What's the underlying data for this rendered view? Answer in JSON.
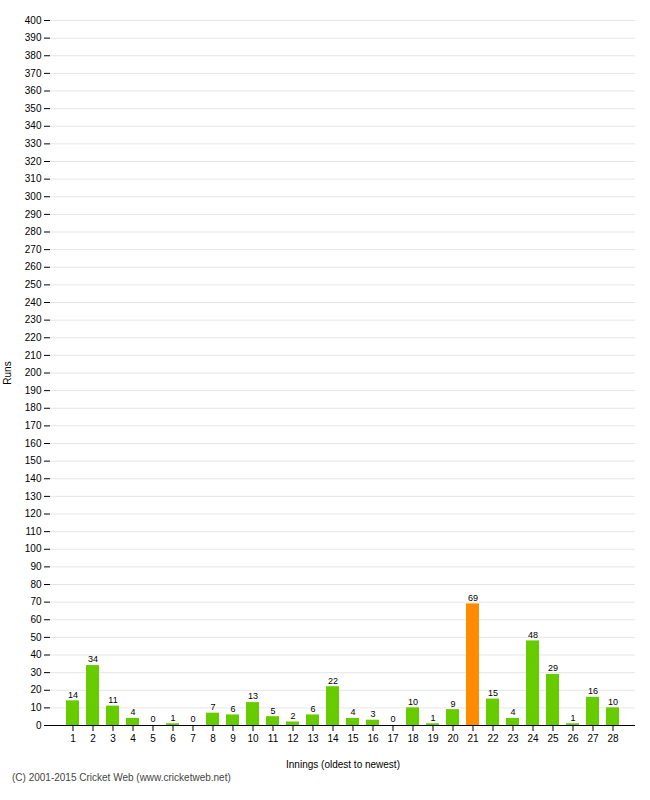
{
  "chart_data": {
    "type": "bar",
    "categories": [
      "1",
      "2",
      "3",
      "4",
      "5",
      "6",
      "7",
      "8",
      "9",
      "10",
      "11",
      "12",
      "13",
      "14",
      "15",
      "16",
      "17",
      "18",
      "19",
      "20",
      "21",
      "22",
      "23",
      "24",
      "25",
      "26",
      "27",
      "28"
    ],
    "values": [
      14,
      34,
      11,
      4,
      0,
      1,
      0,
      7,
      6,
      13,
      5,
      2,
      6,
      22,
      4,
      3,
      0,
      10,
      1,
      9,
      69,
      15,
      4,
      48,
      29,
      1,
      16,
      10
    ],
    "colors": [
      "#66cc00",
      "#66cc00",
      "#66cc00",
      "#66cc00",
      "#66cc00",
      "#66cc00",
      "#66cc00",
      "#66cc00",
      "#66cc00",
      "#66cc00",
      "#66cc00",
      "#66cc00",
      "#66cc00",
      "#66cc00",
      "#66cc00",
      "#66cc00",
      "#66cc00",
      "#66cc00",
      "#66cc00",
      "#66cc00",
      "#ff8c00",
      "#66cc00",
      "#66cc00",
      "#66cc00",
      "#66cc00",
      "#66cc00",
      "#66cc00",
      "#66cc00"
    ],
    "xlabel": "Innings (oldest to newest)",
    "ylabel": "Runs",
    "ylim": [
      0,
      400
    ],
    "yticks": [
      0,
      10,
      20,
      30,
      40,
      50,
      60,
      70,
      80,
      90,
      100,
      110,
      120,
      130,
      140,
      150,
      160,
      170,
      180,
      190,
      200,
      210,
      220,
      230,
      240,
      250,
      260,
      270,
      280,
      290,
      300,
      310,
      320,
      330,
      340,
      350,
      360,
      370,
      380,
      390,
      400
    ],
    "grid": true,
    "data_labels": true,
    "annotation": "(C) 2001-2015 Cricket Web (www.cricketweb.net)"
  }
}
